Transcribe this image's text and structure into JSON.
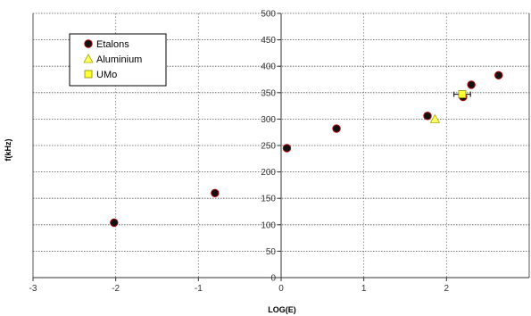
{
  "chart_data": {
    "type": "scatter",
    "title": "",
    "xlabel": "LOG(E)",
    "ylabel": "f(kHz)",
    "xlim": [
      -3,
      3
    ],
    "ylim": [
      0,
      500
    ],
    "x_ticks": [
      -3,
      -2,
      -1,
      0,
      1,
      2
    ],
    "x_tick_labels": [
      "-3",
      "-2",
      "-1",
      "0",
      "1",
      "2"
    ],
    "y_ticks": [
      0,
      50,
      100,
      150,
      200,
      250,
      300,
      350,
      400,
      450,
      500
    ],
    "y_tick_labels": [
      "0",
      "50",
      "100",
      "150",
      "200",
      "250",
      "300",
      "350",
      "400",
      "450",
      "500"
    ],
    "grid": "major",
    "legend_position": "top-left",
    "series": [
      {
        "name": "Etalons",
        "marker": "circle",
        "color": "#000000",
        "x": [
          -2.02,
          -0.8,
          0.07,
          0.67,
          1.77,
          2.2,
          2.3,
          2.63
        ],
        "y": [
          104,
          160,
          245,
          282,
          306,
          342,
          365,
          383
        ]
      },
      {
        "name": "Aluminium",
        "marker": "triangle",
        "color": "#ffff66",
        "x": [
          1.86
        ],
        "y": [
          300
        ]
      },
      {
        "name": "UMo",
        "marker": "square",
        "color": "#ffff33",
        "x": [
          2.19
        ],
        "y": [
          347
        ],
        "x_error": [
          0.1
        ]
      }
    ]
  }
}
